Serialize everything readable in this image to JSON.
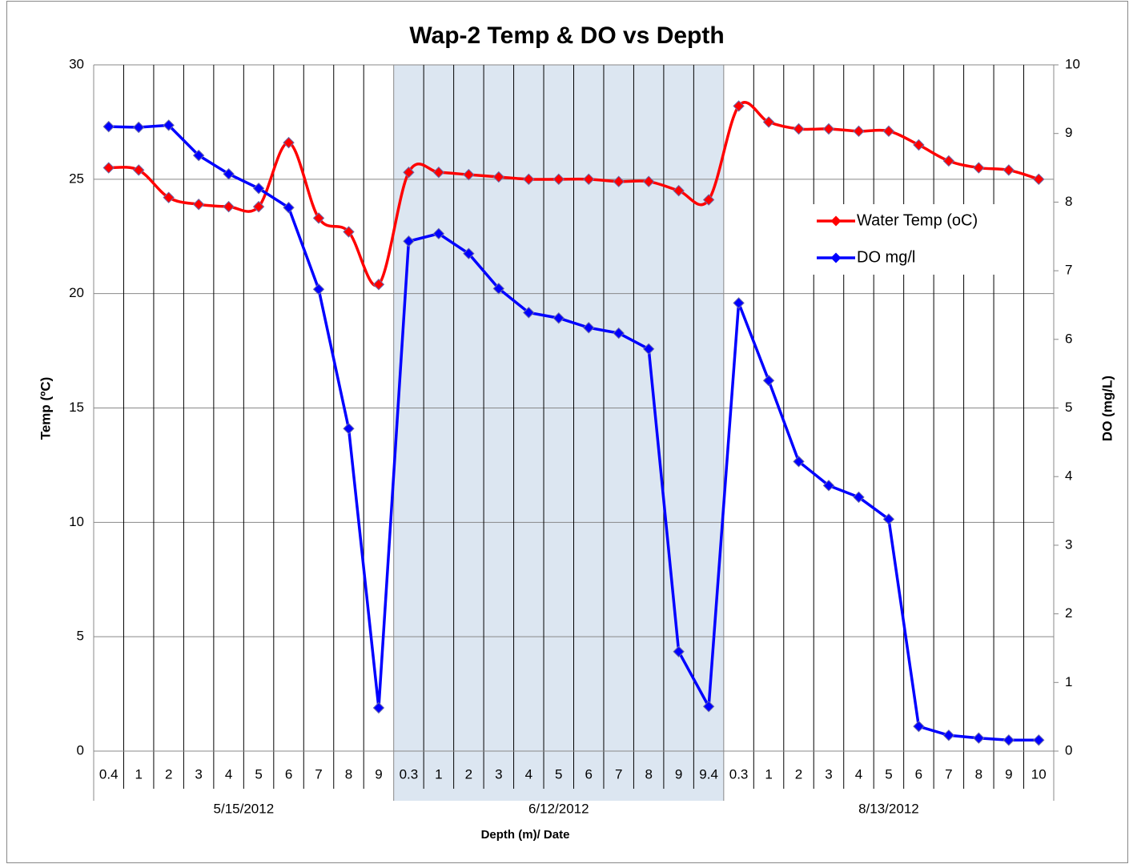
{
  "chart_data": {
    "type": "line",
    "title": "Wap-2 Temp & DO vs Depth",
    "x_label": "Depth (m)/ Date",
    "y_label": "Temp (ºC)",
    "y2_label": "DO (mg/L)",
    "category_groups": [
      {
        "label": "5/15/2012",
        "categories": [
          "0.4",
          "1",
          "2",
          "3",
          "4",
          "5",
          "6",
          "7",
          "8",
          "9"
        ]
      },
      {
        "label": "6/12/2012",
        "categories": [
          "0.3",
          "1",
          "2",
          "3",
          "4",
          "5",
          "6",
          "7",
          "8",
          "9",
          "9.4"
        ],
        "shade": "#dce6f1"
      },
      {
        "label": "8/13/2012",
        "categories": [
          "0.3",
          "1",
          "2",
          "3",
          "4",
          "5",
          "6",
          "7",
          "8",
          "9",
          "10"
        ]
      }
    ],
    "series": [
      {
        "name": "Water Temp (oC)",
        "color": "#ff0000",
        "smooth": true,
        "values": [
          25.5,
          25.4,
          24.2,
          23.9,
          23.8,
          23.8,
          26.6,
          23.3,
          22.7,
          20.4,
          25.3,
          25.3,
          25.2,
          25.1,
          25.0,
          25.0,
          25.0,
          24.9,
          24.9,
          24.5,
          24.1,
          28.2,
          27.5,
          27.2,
          27.2,
          27.1,
          27.1,
          26.5,
          25.8,
          25.5,
          25.4,
          25.0
        ]
      },
      {
        "name": "DO mg/l",
        "color": "#0000ff",
        "axis": "y2",
        "smooth": false,
        "values": [
          9.1,
          9.09,
          9.12,
          8.68,
          8.41,
          8.2,
          7.92,
          6.73,
          4.7,
          0.63,
          7.43,
          7.54,
          7.25,
          6.74,
          6.39,
          6.31,
          6.17,
          6.09,
          5.86,
          1.45,
          0.65,
          6.53,
          5.4,
          4.22,
          3.87,
          3.7,
          3.38,
          0.36,
          0.23,
          0.19,
          0.16,
          0.16
        ]
      }
    ],
    "ylim": [
      0,
      30
    ],
    "yticks": [
      0,
      5,
      10,
      15,
      20,
      25,
      30
    ],
    "y2lim": [
      0,
      10
    ],
    "y2ticks": [
      0,
      1,
      2,
      3,
      4,
      5,
      6,
      7,
      8,
      9,
      10
    ],
    "grid": true,
    "legend": "upper right"
  }
}
